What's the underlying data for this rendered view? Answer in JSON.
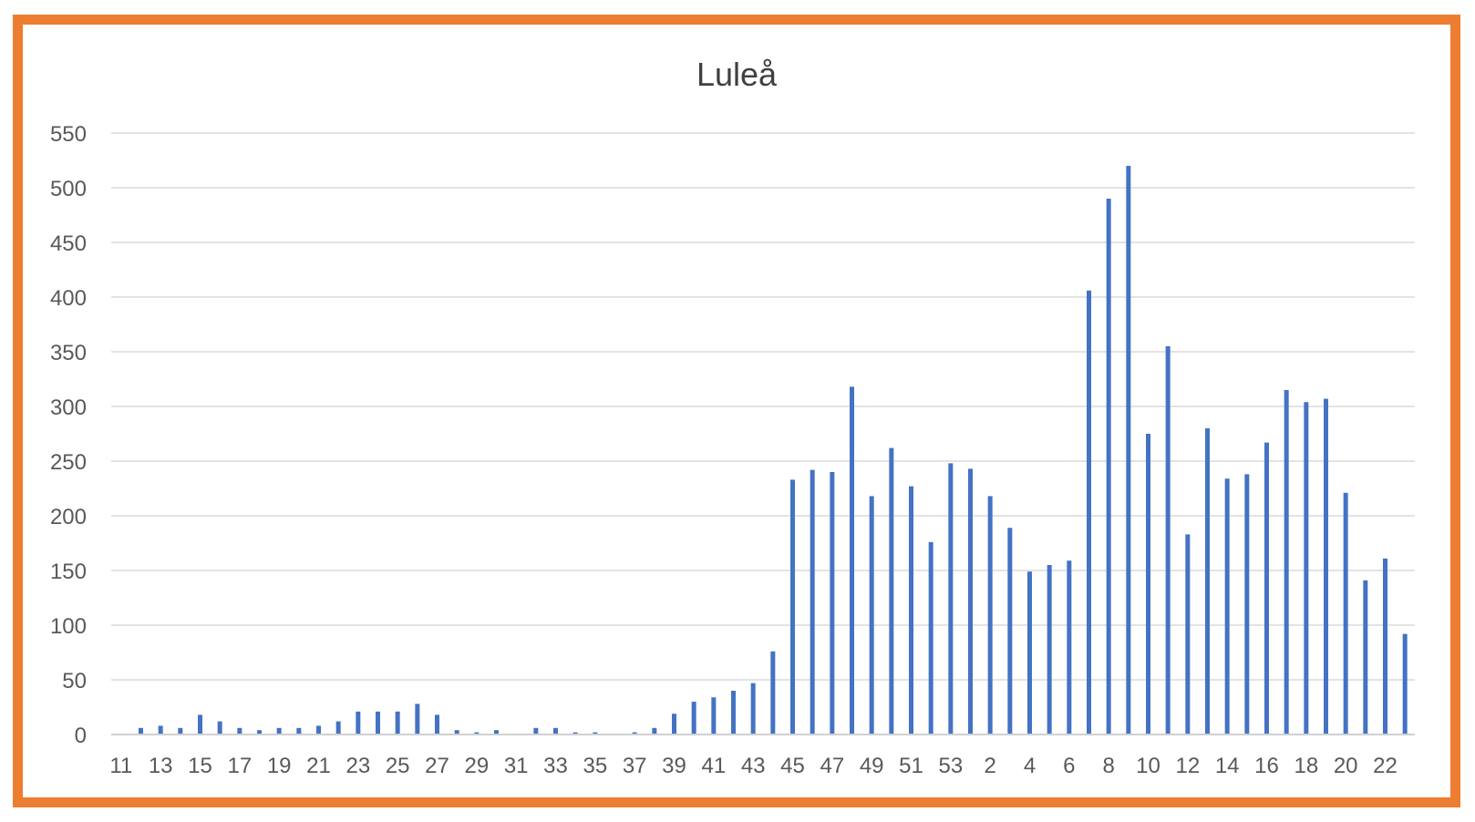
{
  "chart_data": {
    "type": "bar",
    "title": "Luleå",
    "xlabel": "",
    "ylabel": "",
    "ylim": [
      0,
      550
    ],
    "yticks": [
      0,
      50,
      100,
      150,
      200,
      250,
      300,
      350,
      400,
      450,
      500,
      550
    ],
    "grid": true,
    "legend": "none",
    "categories": [
      "11",
      "12",
      "13",
      "14",
      "15",
      "16",
      "17",
      "18",
      "19",
      "20",
      "21",
      "22",
      "23",
      "24",
      "25",
      "26",
      "27",
      "28",
      "29",
      "30",
      "31",
      "32",
      "33",
      "34",
      "35",
      "36",
      "37",
      "38",
      "39",
      "40",
      "41",
      "42",
      "43",
      "44",
      "45",
      "46",
      "47",
      "48",
      "49",
      "50",
      "51",
      "52",
      "53",
      "1",
      "2",
      "3",
      "4",
      "5",
      "6",
      "7",
      "8",
      "9",
      "10",
      "11",
      "12",
      "13",
      "14",
      "15",
      "16",
      "17",
      "18",
      "19",
      "20",
      "21",
      "22",
      "23"
    ],
    "tick_labels": [
      "11",
      "13",
      "15",
      "17",
      "19",
      "21",
      "23",
      "25",
      "27",
      "29",
      "31",
      "33",
      "35",
      "37",
      "39",
      "41",
      "43",
      "45",
      "47",
      "49",
      "51",
      "53",
      "2",
      "4",
      "6",
      "8",
      "10",
      "12",
      "14",
      "16",
      "18",
      "20",
      "22"
    ],
    "series": [
      {
        "values": [
          0,
          6,
          8,
          6,
          18,
          12,
          6,
          4,
          6,
          6,
          8,
          12,
          21,
          21,
          21,
          28,
          18,
          4,
          2,
          4,
          0,
          6,
          6,
          2,
          2,
          0,
          2,
          6,
          19,
          30,
          34,
          40,
          47,
          76,
          233,
          242,
          240,
          318,
          218,
          262,
          227,
          176,
          248,
          243,
          218,
          189,
          149,
          155,
          159,
          406,
          490,
          520,
          275,
          355,
          183,
          280,
          234,
          238,
          267,
          315,
          304,
          307,
          221,
          141,
          161,
          92
        ]
      }
    ]
  },
  "colors": {
    "bar": "#4472C4",
    "frame": "#ED7D31",
    "grid": "#E3E3E3",
    "axis": "#D0D0D0"
  }
}
